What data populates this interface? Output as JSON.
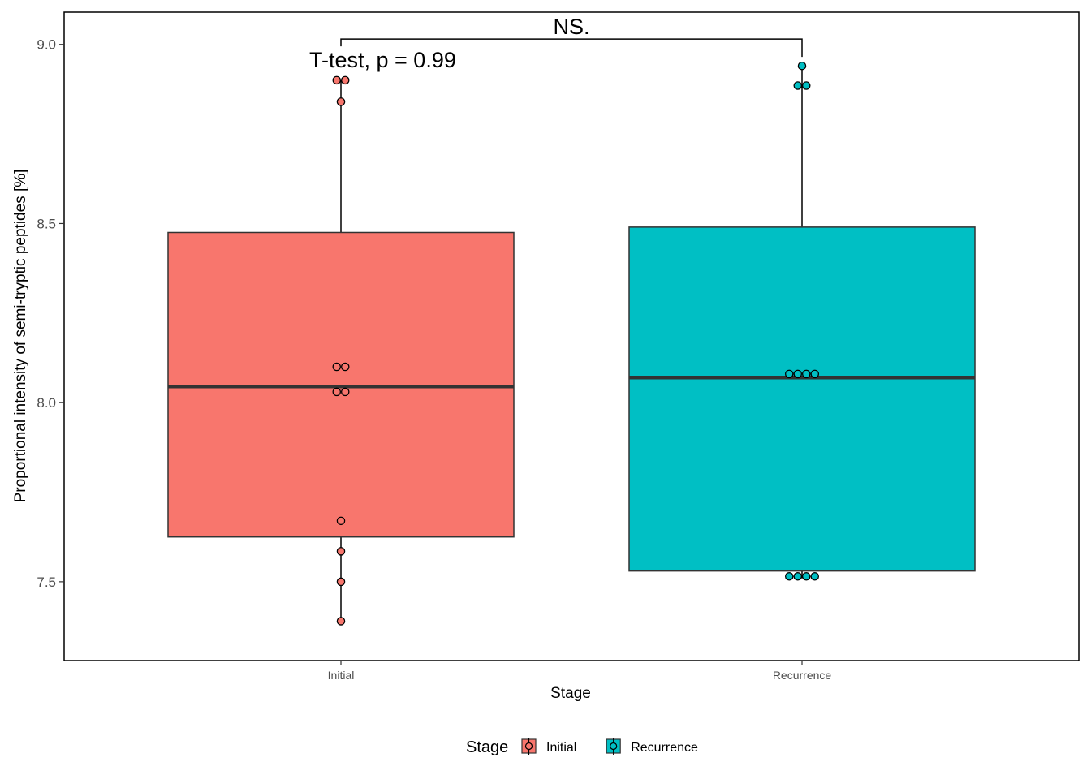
{
  "chart_data": {
    "type": "box",
    "xlabel": "Stage",
    "ylabel": "Proportional intensity of semi-tryptic peptides [%]",
    "ylim": [
      7.28,
      9.09
    ],
    "yticks": [
      7.5,
      8.0,
      8.5,
      9.0
    ],
    "ytick_labels": [
      "7.5",
      "8.0",
      "8.5",
      "9.0"
    ],
    "categories": [
      "Initial",
      "Recurrence"
    ],
    "series": [
      {
        "name": "Initial",
        "color": "#F8766D",
        "box": {
          "lower_whisker": 7.39,
          "q1": 7.625,
          "median": 8.045,
          "q3": 8.475,
          "upper_whisker": 8.9
        },
        "points": [
          8.9,
          8.9,
          8.84,
          8.1,
          8.1,
          8.03,
          8.03,
          7.67,
          7.585,
          7.5,
          7.39
        ]
      },
      {
        "name": "Recurrence",
        "color": "#00BFC4",
        "box": {
          "lower_whisker": 7.51,
          "q1": 7.53,
          "median": 8.07,
          "q3": 8.49,
          "upper_whisker": 8.94
        },
        "points": [
          8.94,
          8.885,
          8.885,
          8.08,
          8.08,
          8.08,
          8.08,
          7.515,
          7.515,
          7.515,
          7.515
        ]
      }
    ],
    "annotations": {
      "significance_label": "NS.",
      "test_label": "T-test, p = 0.99",
      "bracket_y": 9.015
    },
    "legend": {
      "title": "Stage",
      "position": "bottom",
      "entries": [
        "Initial",
        "Recurrence"
      ]
    },
    "grid": false
  }
}
